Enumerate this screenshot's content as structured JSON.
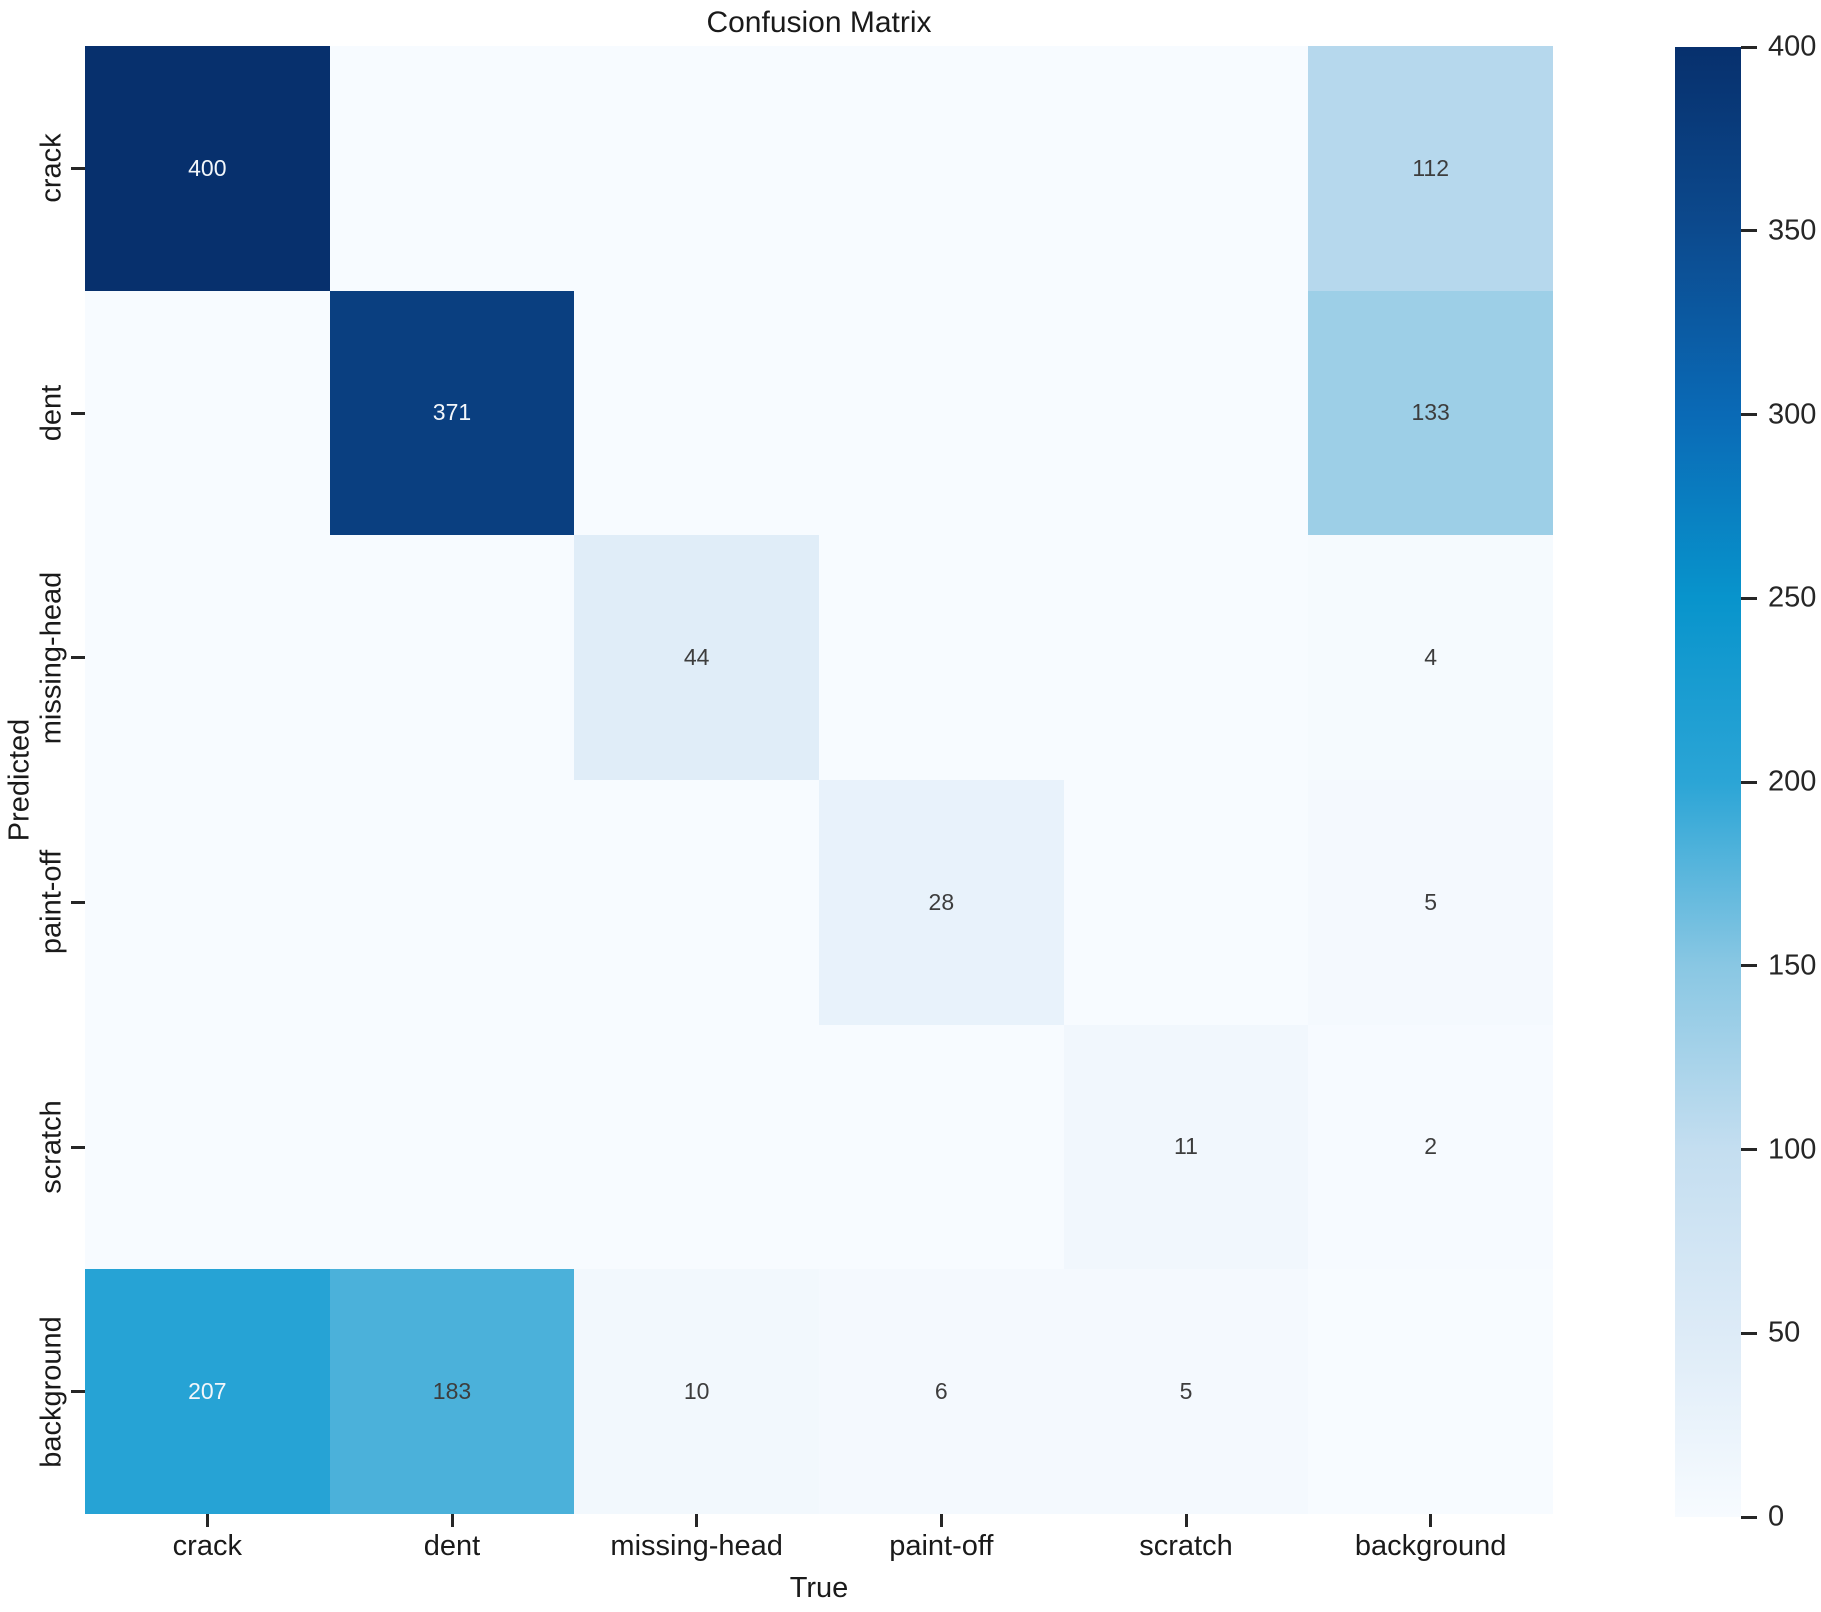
{
  "title": "Confusion Matrix",
  "chart_data": {
    "type": "heatmap",
    "title": "Confusion Matrix",
    "xlabel": "True",
    "ylabel": "Predicted",
    "x_categories": [
      "crack",
      "dent",
      "missing-head",
      "paint-off",
      "scratch",
      "background"
    ],
    "y_categories": [
      "crack",
      "dent",
      "missing-head",
      "paint-off",
      "scratch",
      "background"
    ],
    "matrix": [
      [
        400,
        0,
        0,
        0,
        0,
        112
      ],
      [
        0,
        371,
        0,
        0,
        0,
        133
      ],
      [
        0,
        0,
        44,
        0,
        0,
        4
      ],
      [
        0,
        0,
        0,
        28,
        0,
        5
      ],
      [
        0,
        0,
        0,
        0,
        11,
        2
      ],
      [
        207,
        183,
        10,
        6,
        5,
        0
      ]
    ],
    "annotate_zeros": false,
    "vmin": 0,
    "vmax": 400,
    "grid": false,
    "legend_position": "right-colorbar",
    "colorbar_ticks": [
      0,
      50,
      100,
      150,
      200,
      250,
      300,
      350,
      400
    ],
    "colormap_stops": [
      [
        0,
        "#f7fbff"
      ],
      [
        50,
        "#ddebf7"
      ],
      [
        100,
        "#c4def0"
      ],
      [
        150,
        "#89c7e3"
      ],
      [
        200,
        "#2ba5d6"
      ],
      [
        250,
        "#0894cc"
      ],
      [
        300,
        "#0a6ab6"
      ],
      [
        350,
        "#0c4a8e"
      ],
      [
        400,
        "#07306d"
      ]
    ],
    "annotation_color_dark": "#3d3d3d",
    "annotation_color_light": "#f2f6fa",
    "light_text_threshold": 200,
    "tick_color": "#262626"
  }
}
